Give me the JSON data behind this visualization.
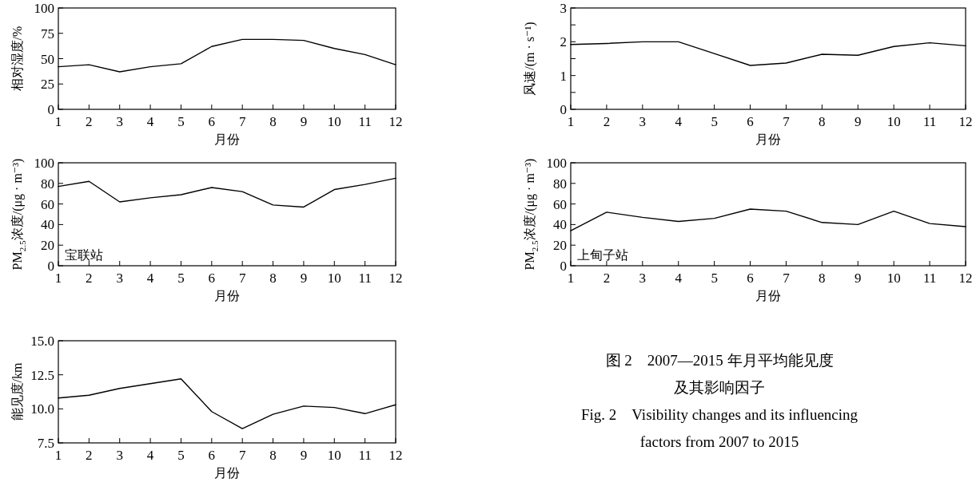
{
  "chart_data": [
    {
      "type": "line",
      "xlabel": "月份",
      "ylabel": "相对湿度/%",
      "x": [
        1,
        2,
        3,
        4,
        5,
        6,
        7,
        8,
        9,
        10,
        11,
        12
      ],
      "series": [
        {
          "color": "#000000",
          "values": [
            42,
            44,
            37,
            42,
            45,
            62,
            69,
            69,
            68,
            60,
            54,
            44
          ]
        }
      ],
      "xlim": [
        1,
        12
      ],
      "xticks": [
        1,
        2,
        3,
        4,
        5,
        6,
        7,
        8,
        9,
        10,
        11,
        12
      ],
      "ylim": [
        0,
        100
      ],
      "yticks": [
        0,
        25,
        50,
        75,
        100
      ],
      "marker": "none",
      "line_style": "solid"
    },
    {
      "type": "line",
      "xlabel": "月份",
      "ylabel": "风速/(m · s⁻¹)",
      "x": [
        1,
        2,
        3,
        4,
        5,
        6,
        7,
        8,
        9,
        10,
        11,
        12
      ],
      "series": [
        {
          "color": "#000000",
          "values": [
            1.92,
            1.95,
            2.0,
            2.0,
            1.65,
            1.3,
            1.37,
            1.63,
            1.6,
            1.86,
            1.97,
            1.88
          ]
        }
      ],
      "xlim": [
        1,
        12
      ],
      "xticks": [
        1,
        2,
        3,
        4,
        5,
        6,
        7,
        8,
        9,
        10,
        11,
        12
      ],
      "ylim": [
        0,
        3
      ],
      "yticks": [
        0,
        {
          "value": 0.5,
          "label": null
        },
        1,
        {
          "value": 1.5,
          "label": null
        },
        2,
        {
          "value": 2.5,
          "label": null
        },
        3
      ],
      "marker": "none",
      "line_style": "solid"
    },
    {
      "type": "line",
      "xlabel": "月份",
      "ylabel": "PM$_{2.5}$浓度/(μg · m⁻³)",
      "annotations": [
        "宝联站"
      ],
      "x": [
        1,
        2,
        3,
        4,
        5,
        6,
        7,
        8,
        9,
        10,
        11,
        12
      ],
      "series": [
        {
          "color": "#000000",
          "values": [
            77,
            82,
            62,
            66,
            69,
            76,
            72,
            59,
            57,
            74,
            79,
            85
          ]
        }
      ],
      "xlim": [
        1,
        12
      ],
      "xticks": [
        1,
        2,
        3,
        4,
        5,
        6,
        7,
        8,
        9,
        10,
        11,
        12
      ],
      "ylim": [
        0,
        100
      ],
      "yticks": [
        0,
        20,
        40,
        60,
        80,
        100
      ],
      "marker": "none",
      "line_style": "solid"
    },
    {
      "type": "line",
      "xlabel": "月份",
      "ylabel": "PM$_{2.5}$浓度/(μg · m⁻³)",
      "annotations": [
        "上甸子站"
      ],
      "x": [
        1,
        2,
        3,
        4,
        5,
        6,
        7,
        8,
        9,
        10,
        11,
        12
      ],
      "series": [
        {
          "color": "#000000",
          "values": [
            34,
            52,
            47,
            43,
            46,
            55,
            53,
            42,
            40,
            53,
            41,
            38
          ]
        }
      ],
      "xlim": [
        1,
        12
      ],
      "xticks": [
        1,
        2,
        3,
        4,
        5,
        6,
        7,
        8,
        9,
        10,
        11,
        12
      ],
      "ylim": [
        0,
        100
      ],
      "yticks": [
        0,
        20,
        40,
        60,
        80,
        100
      ],
      "marker": "none",
      "line_style": "solid"
    },
    {
      "type": "line",
      "xlabel": "月份",
      "ylabel": "能见度/km",
      "x": [
        1,
        2,
        3,
        4,
        5,
        6,
        7,
        8,
        9,
        10,
        11,
        12
      ],
      "series": [
        {
          "color": "#000000",
          "values": [
            10.8,
            11.0,
            11.5,
            11.85,
            12.2,
            9.8,
            8.55,
            9.6,
            10.2,
            10.1,
            9.65,
            10.3
          ]
        }
      ],
      "xlim": [
        1,
        12
      ],
      "xticks": [
        1,
        2,
        3,
        4,
        5,
        6,
        7,
        8,
        9,
        10,
        11,
        12
      ],
      "ylim": [
        7.5,
        15
      ],
      "yticks": [
        7.5,
        {
          "value": 10,
          "label": "10.0"
        },
        12.5,
        {
          "value": 15,
          "label": "15.0"
        }
      ],
      "marker": "none",
      "line_style": "solid"
    },
    {
      "type": "other",
      "annotations": [
        "图 2　2007—2015 年月平均能见度",
        "及其影响因子",
        "Fig. 2　Visibility changes and its influencing",
        "factors from 2007 to 2015"
      ]
    }
  ]
}
